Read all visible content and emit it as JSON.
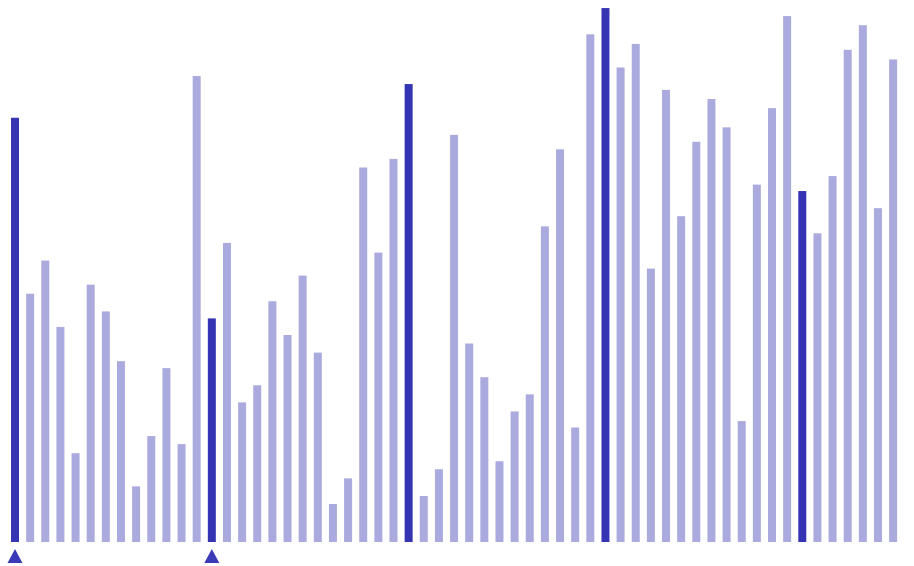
{
  "chart_data": {
    "type": "bar",
    "title": "",
    "xlabel": "",
    "ylabel": "",
    "ylim": [
      0,
      100
    ],
    "grid": false,
    "legend": "none",
    "colors": {
      "highlight": "#3535b4",
      "normal": "#aaaadf",
      "marker": "#3a3ab8"
    },
    "values": [
      79.3,
      46.4,
      52.6,
      40.2,
      16.6,
      48.1,
      43.1,
      33.8,
      10.4,
      19.8,
      32.5,
      18.3,
      87.1,
      41.8,
      55.9,
      26.1,
      29.3,
      45.0,
      38.7,
      49.8,
      35.4,
      7.1,
      11.9,
      70.0,
      54.1,
      71.6,
      85.6,
      8.6,
      13.6,
      76.1,
      37.1,
      30.8,
      15.1,
      24.4,
      27.6,
      59.0,
      73.4,
      21.4,
      94.9,
      99.8,
      88.7,
      93.1,
      51.1,
      84.5,
      60.9,
      74.8,
      82.8,
      77.5,
      22.6,
      66.8,
      81.1,
      98.3,
      65.6,
      57.7,
      68.4,
      92.0,
      96.6,
      62.4,
      90.2
    ],
    "highlighted": [
      0,
      13,
      26,
      39,
      52
    ],
    "markers": [
      0,
      13
    ]
  }
}
